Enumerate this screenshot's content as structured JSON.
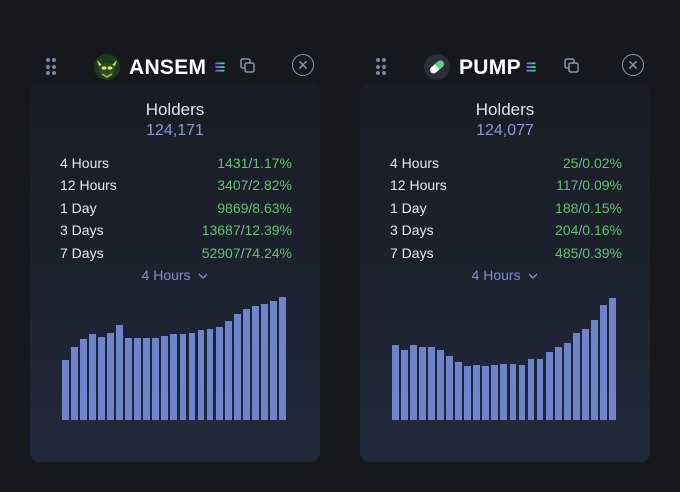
{
  "colors": {
    "background": "#17181d",
    "bar": "#6f84cc",
    "positive": "#5fc46b",
    "holders_value": "#8b9bd6"
  },
  "panels": [
    {
      "token": "ANSEM",
      "icon": "ansem-token-avatar-icon",
      "holders_label": "Holders",
      "holders_value": "124,171",
      "stats": [
        {
          "label": "4 Hours",
          "count": "1431",
          "percent": "1.17%"
        },
        {
          "label": "12 Hours",
          "count": "3407",
          "percent": "2.82%"
        },
        {
          "label": "1 Day",
          "count": "9869",
          "percent": "8.63%"
        },
        {
          "label": "3 Days",
          "count": "13687",
          "percent": "12.39%"
        },
        {
          "label": "7 Days",
          "count": "52907",
          "percent": "74.24%"
        }
      ],
      "timeframe": "4 Hours",
      "chart_data": {
        "type": "bar",
        "values": [
          0.47,
          0.57,
          0.63,
          0.67,
          0.65,
          0.68,
          0.74,
          0.64,
          0.64,
          0.64,
          0.64,
          0.66,
          0.67,
          0.67,
          0.68,
          0.7,
          0.71,
          0.73,
          0.77,
          0.83,
          0.87,
          0.89,
          0.91,
          0.93,
          0.96
        ]
      }
    },
    {
      "token": "PUMP",
      "icon": "pill-icon",
      "holders_label": "Holders",
      "holders_value": "124,077",
      "stats": [
        {
          "label": "4 Hours",
          "count": "25",
          "percent": "0.02%"
        },
        {
          "label": "12 Hours",
          "count": "117",
          "percent": "0.09%"
        },
        {
          "label": "1 Day",
          "count": "188",
          "percent": "0.15%"
        },
        {
          "label": "3 Days",
          "count": "204",
          "percent": "0.16%"
        },
        {
          "label": "7 Days",
          "count": "485",
          "percent": "0.39%"
        }
      ],
      "timeframe": "4 Hours",
      "chart_data": {
        "type": "bar",
        "values": [
          0.59,
          0.55,
          0.59,
          0.57,
          0.57,
          0.55,
          0.5,
          0.45,
          0.42,
          0.43,
          0.42,
          0.43,
          0.44,
          0.44,
          0.43,
          0.48,
          0.48,
          0.53,
          0.57,
          0.6,
          0.68,
          0.71,
          0.78,
          0.9,
          0.95
        ]
      }
    }
  ]
}
